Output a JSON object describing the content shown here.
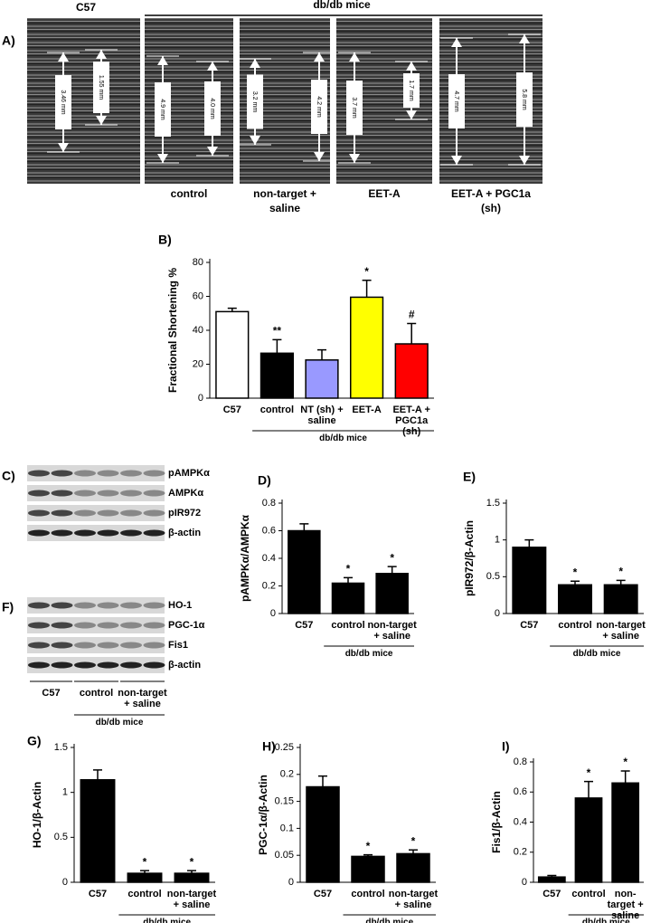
{
  "panel_a": {
    "label": "A)",
    "c57": "C57",
    "group": "db/db mice",
    "conditions": [
      "control",
      "non-target + saline",
      "EET-A",
      "EET-A + PGC1a (sh)"
    ],
    "measurements": [
      [
        "3.46 mm",
        "1.55 mm"
      ],
      [
        "4.9 mm",
        "4.0 mm"
      ],
      [
        "3.2 mm",
        "4.2 mm"
      ],
      [
        "3.7 mm",
        "1.7 mm"
      ],
      [
        "4.7 mm",
        "5.8 mm"
      ]
    ]
  },
  "blots_c": {
    "label": "C)",
    "bands": [
      "pAMPKα",
      "AMPKα",
      "pIR972",
      "β-actin"
    ]
  },
  "blots_f": {
    "label": "F)",
    "bands": [
      "HO-1",
      "PGC-1α",
      "Fis1",
      "β-actin"
    ]
  },
  "blot_lanes": {
    "groups": [
      "C57",
      "control",
      "non-target + saline"
    ],
    "group": "db/db mice"
  },
  "chart_data": [
    {
      "type": "bar",
      "panel": "B)",
      "ylabel": "Fractional Shortening %",
      "categories": [
        "C57",
        "control",
        "NT (sh) + saline",
        "EET-A",
        "EET-A + PGC1a (sh)"
      ],
      "values": [
        51,
        26.5,
        22.5,
        59.5,
        32
      ],
      "errors": [
        2,
        8,
        6,
        10,
        12
      ],
      "bar_labels": [
        null,
        "**",
        null,
        "*",
        "#"
      ],
      "colors": [
        "#ffffff",
        "#000000",
        "#9999ff",
        "#ffff00",
        "#ff0000"
      ],
      "ylim": [
        0,
        80
      ],
      "yticks": [
        0,
        20,
        40,
        60,
        80
      ],
      "group_label": "db/db mice"
    },
    {
      "type": "bar",
      "panel": "D)",
      "ylabel": "pAMPKα/AMPKα",
      "categories": [
        "C57",
        "control",
        "non-target + saline"
      ],
      "values": [
        0.6,
        0.22,
        0.29
      ],
      "errors": [
        0.05,
        0.04,
        0.05
      ],
      "bar_labels": [
        null,
        "*",
        "*"
      ],
      "color": "#000000",
      "ylim": [
        0,
        0.8
      ],
      "yticks": [
        0,
        0.2,
        0.4,
        0.6,
        0.8
      ],
      "group_label": "db/db mice"
    },
    {
      "type": "bar",
      "panel": "E)",
      "ylabel": "pIR972/β-Actin",
      "categories": [
        "C57",
        "control",
        "non-target + saline"
      ],
      "values": [
        0.9,
        0.39,
        0.39
      ],
      "errors": [
        0.1,
        0.05,
        0.06
      ],
      "bar_labels": [
        null,
        "*",
        "*"
      ],
      "color": "#000000",
      "ylim": [
        0,
        1.5
      ],
      "yticks": [
        0,
        0.5,
        1,
        1.5
      ],
      "group_label": "db/db mice"
    },
    {
      "type": "bar",
      "panel": "G)",
      "ylabel": "HO-1/β-Actin",
      "categories": [
        "C57",
        "control",
        "non-target + saline"
      ],
      "values": [
        1.14,
        0.1,
        0.1
      ],
      "errors": [
        0.11,
        0.03,
        0.03
      ],
      "bar_labels": [
        null,
        "*",
        "*"
      ],
      "color": "#000000",
      "ylim": [
        0,
        1.5
      ],
      "yticks": [
        0,
        0.5,
        1,
        1.5
      ],
      "group_label": "db/db mice"
    },
    {
      "type": "bar",
      "panel": "H)",
      "ylabel": "PGC-1α/β-Actin",
      "categories": [
        "C57",
        "control",
        "non-target + saline"
      ],
      "values": [
        0.177,
        0.048,
        0.053
      ],
      "errors": [
        0.02,
        0.003,
        0.007
      ],
      "bar_labels": [
        null,
        "*",
        "*"
      ],
      "color": "#000000",
      "ylim": [
        0,
        0.25
      ],
      "yticks": [
        0,
        0.05,
        0.1,
        0.15,
        0.2,
        0.25
      ],
      "group_label": "db/db mice"
    },
    {
      "type": "bar",
      "panel": "I)",
      "ylabel": "Fis1/β-Actin",
      "categories": [
        "C57",
        "control",
        "non-target + saline"
      ],
      "values": [
        0.035,
        0.56,
        0.66
      ],
      "errors": [
        0.01,
        0.11,
        0.08
      ],
      "bar_labels": [
        null,
        "*",
        "*"
      ],
      "color": "#000000",
      "ylim": [
        0,
        0.8
      ],
      "yticks": [
        0,
        0.2,
        0.4,
        0.6,
        0.8
      ],
      "group_label": "db/db mice"
    }
  ]
}
